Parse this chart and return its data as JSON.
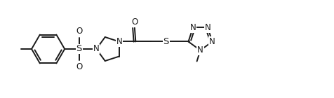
{
  "line_color": "#1a1a1a",
  "bg_color": "#ffffff",
  "line_width": 1.4,
  "font_size": 8.5,
  "figsize": [
    4.76,
    1.4
  ],
  "dpi": 100,
  "xlim": [
    0.0,
    9.5
  ],
  "ylim": [
    0.2,
    2.8
  ]
}
